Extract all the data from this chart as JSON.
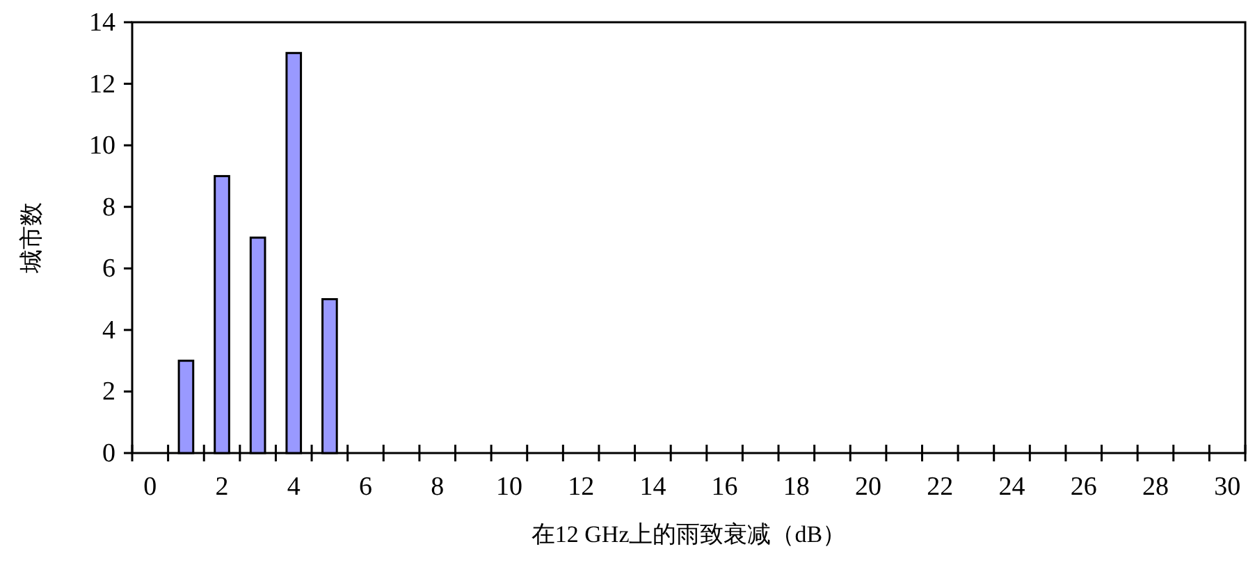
{
  "chart_data": {
    "type": "bar",
    "xlabel": "在12 GHz上的雨致衰减（dB）",
    "ylabel": "城市数",
    "x": [
      1,
      2,
      3,
      4,
      5
    ],
    "values": [
      3,
      9,
      7,
      13,
      5
    ],
    "color": "#9999ff",
    "xlim": [
      -0.5,
      30.5
    ],
    "xticks": [
      0,
      2,
      4,
      6,
      8,
      10,
      12,
      14,
      16,
      18,
      20,
      22,
      24,
      26,
      28,
      30,
      {
        "value": -0.5,
        "label": null
      },
      {
        "value": 0.5,
        "label": null
      },
      {
        "value": 1.5,
        "label": null
      },
      {
        "value": 2.5,
        "label": null
      },
      {
        "value": 3.5,
        "label": null
      },
      {
        "value": 4.5,
        "label": null
      },
      {
        "value": 5.5,
        "label": null
      },
      {
        "value": 6.5,
        "label": null
      },
      {
        "value": 7.5,
        "label": null
      },
      {
        "value": 8.5,
        "label": null
      },
      {
        "value": 9.5,
        "label": null
      },
      {
        "value": 10.5,
        "label": null
      },
      {
        "value": 11.5,
        "label": null
      },
      {
        "value": 12.5,
        "label": null
      },
      {
        "value": 13.5,
        "label": null
      },
      {
        "value": 14.5,
        "label": null
      },
      {
        "value": 15.5,
        "label": null
      },
      {
        "value": 16.5,
        "label": null
      },
      {
        "value": 17.5,
        "label": null
      },
      {
        "value": 18.5,
        "label": null
      },
      {
        "value": 19.5,
        "label": null
      },
      {
        "value": 20.5,
        "label": null
      },
      {
        "value": 21.5,
        "label": null
      },
      {
        "value": 22.5,
        "label": null
      },
      {
        "value": 23.5,
        "label": null
      },
      {
        "value": 24.5,
        "label": null
      },
      {
        "value": 25.5,
        "label": null
      },
      {
        "value": 26.5,
        "label": null
      },
      {
        "value": 27.5,
        "label": null
      },
      {
        "value": 28.5,
        "label": null
      },
      {
        "value": 29.5,
        "label": null
      },
      {
        "value": 30.5,
        "label": null
      }
    ],
    "ylim": [
      0,
      14
    ],
    "yticks": [
      0,
      2,
      4,
      6,
      8,
      10,
      12,
      14
    ]
  }
}
